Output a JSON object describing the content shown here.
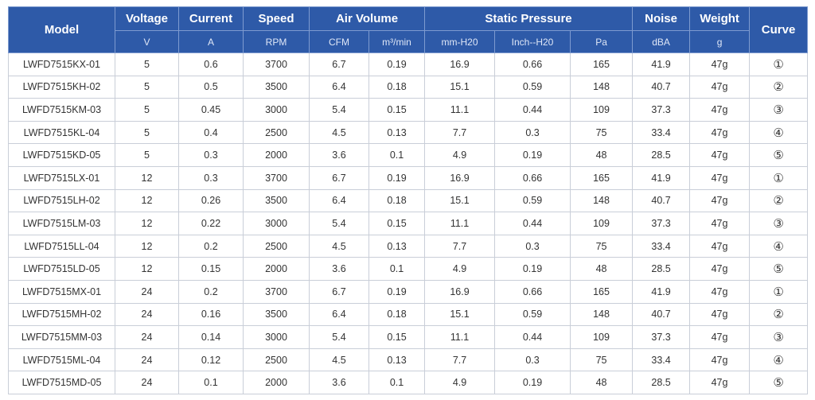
{
  "headers": {
    "model": "Model",
    "voltage": "Voltage",
    "current": "Current",
    "speed": "Speed",
    "air_volume": "Air Volume",
    "static_pressure": "Static Pressure",
    "noise": "Noise",
    "weight": "Weight",
    "curve": "Curve"
  },
  "units": [
    "V",
    "A",
    "RPM",
    "CFM",
    "m³/min",
    "mm-H20",
    "Inch--H20",
    "Pa",
    "dBA",
    "g"
  ],
  "rows": [
    [
      "LWFD7515KX-01",
      "5",
      "0.6",
      "3700",
      "6.7",
      "0.19",
      "16.9",
      "0.66",
      "165",
      "41.9",
      "47g",
      "①"
    ],
    [
      "LWFD7515KH-02",
      "5",
      "0.5",
      "3500",
      "6.4",
      "0.18",
      "15.1",
      "0.59",
      "148",
      "40.7",
      "47g",
      "②"
    ],
    [
      "LWFD7515KM-03",
      "5",
      "0.45",
      "3000",
      "5.4",
      "0.15",
      "11.1",
      "0.44",
      "109",
      "37.3",
      "47g",
      "③"
    ],
    [
      "LWFD7515KL-04",
      "5",
      "0.4",
      "2500",
      "4.5",
      "0.13",
      "7.7",
      "0.3",
      "75",
      "33.4",
      "47g",
      "④"
    ],
    [
      "LWFD7515KD-05",
      "5",
      "0.3",
      "2000",
      "3.6",
      "0.1",
      "4.9",
      "0.19",
      "48",
      "28.5",
      "47g",
      "⑤"
    ],
    [
      "LWFD7515LX-01",
      "12",
      "0.3",
      "3700",
      "6.7",
      "0.19",
      "16.9",
      "0.66",
      "165",
      "41.9",
      "47g",
      "①"
    ],
    [
      "LWFD7515LH-02",
      "12",
      "0.26",
      "3500",
      "6.4",
      "0.18",
      "15.1",
      "0.59",
      "148",
      "40.7",
      "47g",
      "②"
    ],
    [
      "LWFD7515LM-03",
      "12",
      "0.22",
      "3000",
      "5.4",
      "0.15",
      "11.1",
      "0.44",
      "109",
      "37.3",
      "47g",
      "③"
    ],
    [
      "LWFD7515LL-04",
      "12",
      "0.2",
      "2500",
      "4.5",
      "0.13",
      "7.7",
      "0.3",
      "75",
      "33.4",
      "47g",
      "④"
    ],
    [
      "LWFD7515LD-05",
      "12",
      "0.15",
      "2000",
      "3.6",
      "0.1",
      "4.9",
      "0.19",
      "48",
      "28.5",
      "47g",
      "⑤"
    ],
    [
      "LWFD7515MX-01",
      "24",
      "0.2",
      "3700",
      "6.7",
      "0.19",
      "16.9",
      "0.66",
      "165",
      "41.9",
      "47g",
      "①"
    ],
    [
      "LWFD7515MH-02",
      "24",
      "0.16",
      "3500",
      "6.4",
      "0.18",
      "15.1",
      "0.59",
      "148",
      "40.7",
      "47g",
      "②"
    ],
    [
      "LWFD7515MM-03",
      "24",
      "0.14",
      "3000",
      "5.4",
      "0.15",
      "11.1",
      "0.44",
      "109",
      "37.3",
      "47g",
      "③"
    ],
    [
      "LWFD7515ML-04",
      "24",
      "0.12",
      "2500",
      "4.5",
      "0.13",
      "7.7",
      "0.3",
      "75",
      "33.4",
      "47g",
      "④"
    ],
    [
      "LWFD7515MD-05",
      "24",
      "0.1",
      "2000",
      "3.6",
      "0.1",
      "4.9",
      "0.19",
      "48",
      "28.5",
      "47g",
      "⑤"
    ]
  ],
  "colors": {
    "header_bg": "#2e5aa8",
    "header_text": "#ffffff",
    "border": "#c9ced8",
    "cell_text": "#333333"
  }
}
